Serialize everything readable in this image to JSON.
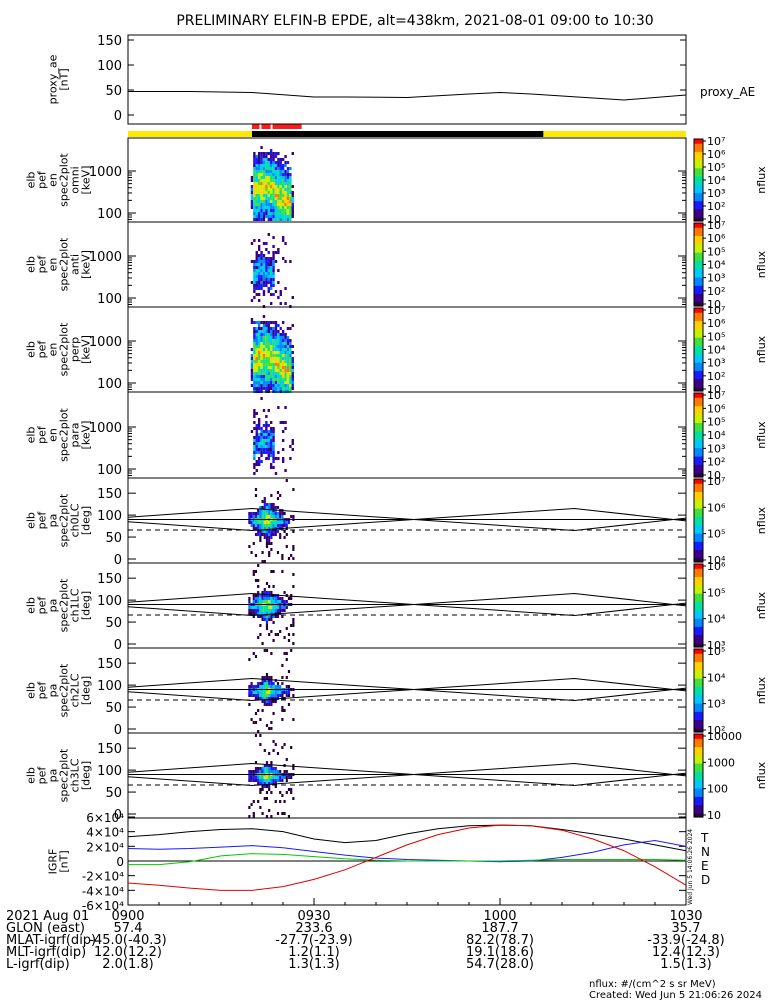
{
  "title": "PRELIMINARY ELFIN-B EPDE, alt=438km, 2021-08-01 09:00 to 10:30",
  "colors": {
    "bar_yellow": "#ffe800",
    "bar_black": "#000000",
    "bar_red": "#ff1a1a",
    "igrf_T": "#000000",
    "igrf_N": "#1a1aff",
    "igrf_E": "#00cc00",
    "igrf_D": "#e00000"
  },
  "chart_data": [
    {
      "type": "line",
      "name": "proxy_ae",
      "ylabel_lines": [
        "proxy_ae",
        "[nT]"
      ],
      "legend": "proxy_AE",
      "ylim": [
        0,
        150
      ],
      "yticks": [
        "0",
        "50",
        "100",
        "150"
      ],
      "x_minutes": [
        0,
        10,
        20,
        30,
        35,
        45,
        55,
        60,
        65,
        70,
        80,
        90
      ],
      "y": [
        47,
        47,
        45,
        36,
        36,
        35,
        42,
        45,
        42,
        38,
        30,
        40
      ]
    },
    {
      "type": "heatmap",
      "name": "omni",
      "ylabel_lines": [
        "elb",
        "pef",
        "en",
        "spec2plot",
        "omni",
        "[keV]"
      ],
      "yscale": "log",
      "yticks": [
        "100",
        "1000"
      ],
      "colorbar": {
        "label": "nflux",
        "ticks": [
          "10",
          "10²",
          "10³",
          "10⁴",
          "10⁵",
          "10⁶",
          "10⁷"
        ]
      }
    },
    {
      "type": "heatmap",
      "name": "anti",
      "ylabel_lines": [
        "elb",
        "pef",
        "en",
        "spec2plot",
        "anti",
        "[keV]"
      ],
      "yscale": "log",
      "yticks": [
        "100",
        "1000"
      ],
      "colorbar": {
        "label": "nflux",
        "ticks": [
          "10",
          "10²",
          "10³",
          "10⁴",
          "10⁵",
          "10⁶",
          "10⁷"
        ]
      }
    },
    {
      "type": "heatmap",
      "name": "perp",
      "ylabel_lines": [
        "elb",
        "pef",
        "en",
        "spec2plot",
        "perp",
        "[keV]"
      ],
      "yscale": "log",
      "yticks": [
        "100",
        "1000"
      ],
      "colorbar": {
        "label": "nflux",
        "ticks": [
          "10",
          "10²",
          "10³",
          "10⁴",
          "10⁵",
          "10⁶",
          "10⁷"
        ]
      }
    },
    {
      "type": "heatmap",
      "name": "para",
      "ylabel_lines": [
        "elb",
        "pef",
        "en",
        "spec2plot",
        "para",
        "[keV]"
      ],
      "yscale": "log",
      "yticks": [
        "100",
        "1000"
      ],
      "colorbar": {
        "label": "nflux",
        "ticks": [
          "10",
          "10²",
          "10³",
          "10⁴",
          "10⁵",
          "10⁶",
          "10⁷"
        ]
      }
    },
    {
      "type": "heatmap",
      "name": "ch0LC",
      "ylabel_lines": [
        "elb",
        "pef",
        "pa",
        "spec2plot",
        "ch0LC",
        "[deg]"
      ],
      "ylim": [
        0,
        180
      ],
      "yticks": [
        "0",
        "50",
        "100",
        "150"
      ],
      "colorbar": {
        "label": "nflux",
        "ticks": [
          "10⁴",
          "10⁵",
          "10⁶",
          "10⁷"
        ]
      }
    },
    {
      "type": "heatmap",
      "name": "ch1LC",
      "ylabel_lines": [
        "elb",
        "pef",
        "pa",
        "spec2plot",
        "ch1LC",
        "[deg]"
      ],
      "ylim": [
        0,
        180
      ],
      "yticks": [
        "0",
        "50",
        "100",
        "150"
      ],
      "colorbar": {
        "label": "nflux",
        "ticks": [
          "10³",
          "10⁴",
          "10⁵",
          "10⁶"
        ]
      }
    },
    {
      "type": "heatmap",
      "name": "ch2LC",
      "ylabel_lines": [
        "elb",
        "pef",
        "pa",
        "spec2plot",
        "ch2LC",
        "[deg]"
      ],
      "ylim": [
        0,
        180
      ],
      "yticks": [
        "0",
        "50",
        "100",
        "150"
      ],
      "colorbar": {
        "label": "nflux",
        "ticks": [
          "10²",
          "10³",
          "10⁴",
          "10⁵"
        ]
      }
    },
    {
      "type": "heatmap",
      "name": "ch3LC",
      "ylabel_lines": [
        "elb",
        "pef",
        "pa",
        "spec2plot",
        "ch3LC",
        "[deg]"
      ],
      "ylim": [
        0,
        180
      ],
      "yticks": [
        "0",
        "50",
        "100",
        "150"
      ],
      "colorbar": {
        "label": "nflux",
        "ticks": [
          "10",
          "100",
          "1000",
          "10000"
        ]
      }
    },
    {
      "type": "line",
      "name": "IGRF",
      "ylabel_lines": [
        "IGRF",
        "[nT]"
      ],
      "ylim": [
        -60000,
        60000
      ],
      "yticks": [
        "-6×10⁴",
        "-4×10⁴",
        "-2×10⁴",
        "0",
        "2×10⁴",
        "4×10⁴",
        "6×10⁴"
      ],
      "legend": [
        "T",
        "N",
        "E",
        "D"
      ],
      "side_text": "Wed Jun  5 14:06:26 2024"
    }
  ],
  "angle_lines": {
    "x_minutes": [
      0,
      20,
      72,
      90
    ],
    "upper_deg": [
      95,
      115,
      65,
      93
    ],
    "lower_deg": [
      85,
      65,
      115,
      87
    ],
    "dashed_deg": 66
  },
  "igrf_series": {
    "x_minutes": [
      0,
      5,
      10,
      15,
      20,
      25,
      30,
      35,
      40,
      45,
      50,
      55,
      60,
      65,
      70,
      75,
      80,
      85,
      90
    ],
    "T": [
      33000,
      36000,
      40000,
      43000,
      44000,
      40000,
      30000,
      25000,
      28000,
      37000,
      44000,
      48000,
      49000,
      48000,
      43000,
      37000,
      30000,
      22000,
      14000
    ],
    "N": [
      17000,
      16000,
      17000,
      19000,
      21000,
      18000,
      13000,
      8000,
      4000,
      2000,
      1000,
      0,
      -1000,
      0,
      5000,
      12000,
      22000,
      28000,
      20000
    ],
    "E": [
      -5000,
      -5000,
      -1000,
      7000,
      10000,
      9000,
      6000,
      3000,
      1000,
      0,
      0,
      0,
      0,
      1000,
      2000,
      2000,
      2000,
      2000,
      1000
    ],
    "D": [
      -30000,
      -33000,
      -37000,
      -40000,
      -40000,
      -35000,
      -25000,
      -12000,
      5000,
      22000,
      36000,
      45000,
      49000,
      48000,
      42000,
      30000,
      14000,
      -8000,
      -33000
    ]
  },
  "footer": {
    "rows": [
      {
        "label": "2021 Aug 01",
        "values": [
          "0900",
          "0930",
          "1000",
          "1030"
        ]
      },
      {
        "label": "GLON (east)",
        "values": [
          "57.4",
          "233.6",
          "187.7",
          "35.7"
        ]
      },
      {
        "label": "MLAT-igrf(dip)",
        "values": [
          "-45.0(-40.3)",
          "-27.7(-23.9)",
          "82.2(78.7)",
          "-33.9(-24.8)"
        ]
      },
      {
        "label": "MLT-igrf(dip)",
        "values": [
          "12.0(12.2)",
          "1.2(1.1)",
          "19.1(18.6)",
          "12.4(12.3)"
        ]
      },
      {
        "label": "L-igrf(dip)",
        "values": [
          "2.0(1.8)",
          "1.3(1.3)",
          "54.7(28.0)",
          "1.5(1.3)"
        ]
      }
    ],
    "nflux_unit": "nflux: #/(cm^2 s sr MeV)",
    "created": "Created: Wed Jun  5 21:06:26 2024"
  }
}
